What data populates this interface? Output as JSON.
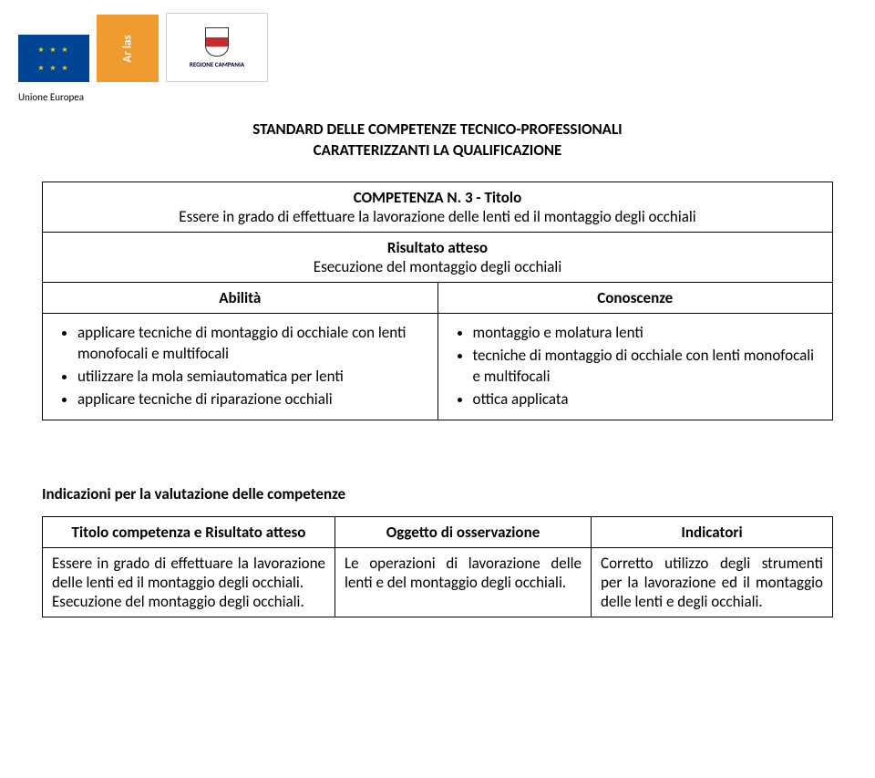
{
  "header": {
    "ue_label": "Unione Europea",
    "campania_label": "REGIONE CAMPANIA",
    "arlas_text": "Ar las"
  },
  "standard_title_line1": "STANDARD DELLE COMPETENZE TECNICO-PROFESSIONALI",
  "standard_title_line2": "CARATTERIZZANTI LA QUALIFICAZIONE",
  "comp": {
    "number": "COMPETENZA N. 3 - Titolo",
    "title": "Essere in grado di effettuare la lavorazione delle lenti ed il montaggio degli occhiali",
    "result_label": "Risultato atteso",
    "result_value": "Esecuzione del montaggio degli occhiali",
    "abilita_label": "Abilità",
    "conoscenze_label": "Conoscenze",
    "abilita": {
      "a1": "applicare tecniche di montaggio di occhiale con lenti monofocali e multifocali",
      "a2": "utilizzare la mola semiautomatica per lenti",
      "a3": "applicare tecniche di riparazione occhiali"
    },
    "conoscenze": {
      "c1": "montaggio e molatura lenti",
      "c2": "tecniche di montaggio di occhiale con lenti monofocali e multifocali",
      "c3": "ottica applicata"
    }
  },
  "eval_heading": "Indicazioni per la valutazione delle competenze",
  "tbl2": {
    "col1": "Titolo competenza e Risultato atteso",
    "col2": "Oggetto di osservazione",
    "col3": "Indicatori",
    "r1c1": "Essere in grado di effettuare la lavorazione delle lenti ed il montaggio degli occhiali.\nEsecuzione del montaggio degli occhiali.",
    "r1c2": "Le operazioni di lavorazione delle lenti e del montaggio degli occhiali.",
    "r1c3": "Corretto utilizzo degli strumenti per la lavorazione ed il montaggio delle lenti e degli occhiali."
  },
  "colors": {
    "eu_blue": "#004494",
    "arlas_orange": "#ef9a2f",
    "shield_red": "#c92a2a",
    "star_yellow": "#ffcc00"
  }
}
